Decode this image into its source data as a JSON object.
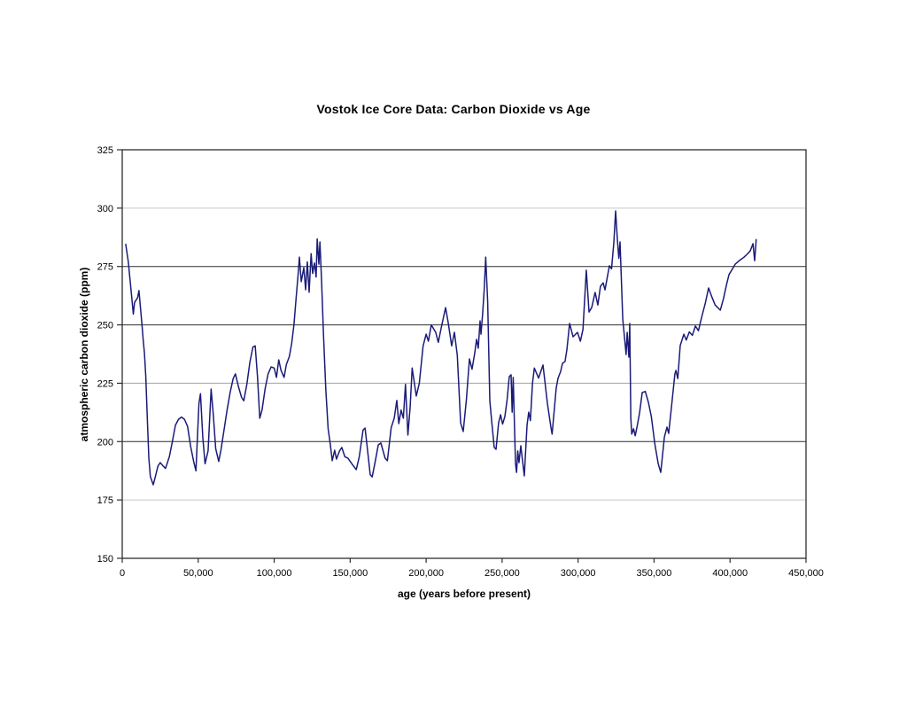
{
  "page": {
    "background_color": "#ffffff"
  },
  "chart_data": {
    "type": "line",
    "title": "Vostok Ice Core Data: Carbon Dioxide vs Age",
    "xlabel": "age (years before present)",
    "ylabel": "atmospheric carbon dioxide (ppm)",
    "xlim": [
      0,
      450000
    ],
    "ylim": [
      150,
      325
    ],
    "grid": "horizontal-only",
    "legend": "none",
    "line_color": "#1b1b78",
    "axis_color": "#2e2e2e",
    "xticks": [
      {
        "value": 0,
        "label": "0"
      },
      {
        "value": 50000,
        "label": "50,000"
      },
      {
        "value": 100000,
        "label": "100,000"
      },
      {
        "value": 150000,
        "label": "150,000"
      },
      {
        "value": 200000,
        "label": "200,000"
      },
      {
        "value": 250000,
        "label": "250,000"
      },
      {
        "value": 300000,
        "label": "300,000"
      },
      {
        "value": 350000,
        "label": "350,000"
      },
      {
        "value": 400000,
        "label": "400,000"
      },
      {
        "value": 450000,
        "label": "450,000"
      }
    ],
    "yticks": [
      {
        "value": 150,
        "label": "150",
        "grid": "frame"
      },
      {
        "value": 175,
        "label": "175",
        "grid": "#c6c6c6"
      },
      {
        "value": 200,
        "label": "200",
        "grid": "#2e2e2e"
      },
      {
        "value": 225,
        "label": "225",
        "grid": "#a2a2a2"
      },
      {
        "value": 250,
        "label": "250",
        "grid": "#2e2e2e"
      },
      {
        "value": 275,
        "label": "275",
        "grid": "#2e2e2e"
      },
      {
        "value": 300,
        "label": "300",
        "grid": "#c6c6c6"
      },
      {
        "value": 325,
        "label": "325",
        "grid": "frame"
      }
    ],
    "series": [
      {
        "name": "atmospheric CO2 (ppm)",
        "points": [
          [
            2300,
            284.5
          ],
          [
            4000,
            277
          ],
          [
            6200,
            262.2
          ],
          [
            7300,
            254.6
          ],
          [
            8100,
            259.6
          ],
          [
            10100,
            261.6
          ],
          [
            11000,
            264.7
          ],
          [
            13000,
            250
          ],
          [
            13800,
            243.5
          ],
          [
            14600,
            238
          ],
          [
            15500,
            228
          ],
          [
            16500,
            210
          ],
          [
            17500,
            193
          ],
          [
            18500,
            185
          ],
          [
            20400,
            181.5
          ],
          [
            22000,
            185.5
          ],
          [
            23500,
            189.5
          ],
          [
            25000,
            191
          ],
          [
            27000,
            189.5
          ],
          [
            28500,
            188.5
          ],
          [
            31000,
            193.5
          ],
          [
            33000,
            200
          ],
          [
            35000,
            207
          ],
          [
            37000,
            209.5
          ],
          [
            39000,
            210.5
          ],
          [
            41000,
            209.5
          ],
          [
            43000,
            206.5
          ],
          [
            45000,
            198
          ],
          [
            47000,
            191.5
          ],
          [
            48500,
            187.5
          ],
          [
            50500,
            216.5
          ],
          [
            51500,
            220.5
          ],
          [
            53000,
            202
          ],
          [
            54500,
            190.5
          ],
          [
            56500,
            196
          ],
          [
            58500,
            222.5
          ],
          [
            60000,
            211
          ],
          [
            61500,
            197
          ],
          [
            63500,
            191.5
          ],
          [
            65000,
            196.5
          ],
          [
            67000,
            205
          ],
          [
            69000,
            213.5
          ],
          [
            71000,
            221
          ],
          [
            73000,
            227
          ],
          [
            74500,
            229
          ],
          [
            76500,
            223.5
          ],
          [
            78500,
            219
          ],
          [
            80000,
            217.5
          ],
          [
            82000,
            224.5
          ],
          [
            84000,
            234
          ],
          [
            86000,
            240.5
          ],
          [
            87500,
            241
          ],
          [
            89000,
            228
          ],
          [
            90500,
            210
          ],
          [
            92000,
            213.5
          ],
          [
            94000,
            222.5
          ],
          [
            96000,
            229
          ],
          [
            98000,
            232
          ],
          [
            100000,
            231.5
          ],
          [
            101500,
            227.5
          ],
          [
            103000,
            235
          ],
          [
            104500,
            230.5
          ],
          [
            106500,
            227.5
          ],
          [
            108000,
            233
          ],
          [
            110000,
            236.5
          ],
          [
            111500,
            242
          ],
          [
            113000,
            250
          ],
          [
            114500,
            262
          ],
          [
            115800,
            272
          ],
          [
            116600,
            279
          ],
          [
            117800,
            268.5
          ],
          [
            119500,
            274.5
          ],
          [
            120700,
            265
          ],
          [
            121800,
            277
          ],
          [
            123000,
            264
          ],
          [
            124300,
            280.5
          ],
          [
            125300,
            272
          ],
          [
            126500,
            276.5
          ],
          [
            127600,
            270.5
          ],
          [
            128300,
            286.8
          ],
          [
            129400,
            276
          ],
          [
            130100,
            285.5
          ],
          [
            131200,
            268.5
          ],
          [
            132500,
            245
          ],
          [
            134000,
            222
          ],
          [
            135500,
            205.5
          ],
          [
            137000,
            198.5
          ],
          [
            138200,
            191.8
          ],
          [
            139800,
            196.3
          ],
          [
            141000,
            192.5
          ],
          [
            143000,
            196
          ],
          [
            144500,
            197.5
          ],
          [
            146500,
            193.5
          ],
          [
            148500,
            192.9
          ],
          [
            151000,
            190.6
          ],
          [
            154000,
            188
          ],
          [
            156000,
            193.5
          ],
          [
            158500,
            205
          ],
          [
            159800,
            205.8
          ],
          [
            161500,
            196
          ],
          [
            163200,
            185.8
          ],
          [
            164500,
            184.9
          ],
          [
            166500,
            191.5
          ],
          [
            168500,
            198.6
          ],
          [
            170200,
            199.4
          ],
          [
            173000,
            192.9
          ],
          [
            174500,
            191.8
          ],
          [
            177000,
            206
          ],
          [
            179000,
            210
          ],
          [
            180700,
            217.6
          ],
          [
            182000,
            207.7
          ],
          [
            183500,
            213.5
          ],
          [
            185000,
            210
          ],
          [
            186400,
            224.5
          ],
          [
            188000,
            202.8
          ],
          [
            189500,
            215
          ],
          [
            190800,
            231.5
          ],
          [
            193500,
            219.5
          ],
          [
            195500,
            225
          ],
          [
            198000,
            241
          ],
          [
            200000,
            246
          ],
          [
            201500,
            243
          ],
          [
            203400,
            250
          ],
          [
            206300,
            246.8
          ],
          [
            208000,
            242.5
          ],
          [
            210000,
            249
          ],
          [
            212800,
            257.4
          ],
          [
            214500,
            251
          ],
          [
            216800,
            241
          ],
          [
            218600,
            246.8
          ],
          [
            220500,
            237
          ],
          [
            222700,
            208
          ],
          [
            224400,
            204.3
          ],
          [
            226500,
            218
          ],
          [
            228500,
            235.4
          ],
          [
            230200,
            231
          ],
          [
            232000,
            238
          ],
          [
            233200,
            243.8
          ],
          [
            234300,
            240
          ],
          [
            235500,
            251.7
          ],
          [
            236100,
            246
          ],
          [
            237200,
            255
          ],
          [
            238200,
            265
          ],
          [
            239200,
            279
          ],
          [
            240500,
            260
          ],
          [
            241900,
            217.6
          ],
          [
            243100,
            209
          ],
          [
            244800,
            197.5
          ],
          [
            246000,
            196.7
          ],
          [
            247700,
            208.1
          ],
          [
            249000,
            211.5
          ],
          [
            250300,
            207.5
          ],
          [
            251800,
            210.7
          ],
          [
            253300,
            218
          ],
          [
            254700,
            227.8
          ],
          [
            255900,
            228.6
          ],
          [
            256600,
            212.6
          ],
          [
            257300,
            227.5
          ],
          [
            258800,
            190.6
          ],
          [
            259500,
            186.8
          ],
          [
            260300,
            196
          ],
          [
            261100,
            191
          ],
          [
            262300,
            198.2
          ],
          [
            263400,
            192
          ],
          [
            264600,
            185.3
          ],
          [
            266400,
            207
          ],
          [
            267500,
            212.6
          ],
          [
            268600,
            209
          ],
          [
            270000,
            225
          ],
          [
            271200,
            231.5
          ],
          [
            274000,
            227.2
          ],
          [
            276900,
            232.8
          ],
          [
            279800,
            216.4
          ],
          [
            282100,
            206.2
          ],
          [
            282900,
            203.2
          ],
          [
            285600,
            222.9
          ],
          [
            286800,
            227.1
          ],
          [
            288500,
            230
          ],
          [
            289700,
            233.5
          ],
          [
            291400,
            234.3
          ],
          [
            292600,
            239.2
          ],
          [
            294400,
            250.6
          ],
          [
            296700,
            244.9
          ],
          [
            299600,
            246.8
          ],
          [
            301500,
            243
          ],
          [
            303200,
            248
          ],
          [
            305400,
            273.4
          ],
          [
            307200,
            255.5
          ],
          [
            309000,
            257.5
          ],
          [
            311200,
            263.9
          ],
          [
            313000,
            258.5
          ],
          [
            314700,
            266.5
          ],
          [
            316500,
            268
          ],
          [
            317700,
            265
          ],
          [
            320600,
            275.3
          ],
          [
            322000,
            274
          ],
          [
            323500,
            285
          ],
          [
            324700,
            298.8
          ],
          [
            325800,
            287
          ],
          [
            326800,
            278.5
          ],
          [
            327600,
            285.5
          ],
          [
            329400,
            252.5
          ],
          [
            331600,
            237.3
          ],
          [
            332300,
            246.8
          ],
          [
            333400,
            236.2
          ],
          [
            334000,
            250.6
          ],
          [
            334700,
            210
          ],
          [
            335300,
            203.2
          ],
          [
            336500,
            205.5
          ],
          [
            337600,
            202.5
          ],
          [
            339000,
            207
          ],
          [
            340500,
            212.5
          ],
          [
            342200,
            221
          ],
          [
            344200,
            221.5
          ],
          [
            346200,
            217
          ],
          [
            348200,
            210.7
          ],
          [
            350500,
            199
          ],
          [
            352700,
            190.6
          ],
          [
            354400,
            186.8
          ],
          [
            356800,
            202
          ],
          [
            358500,
            206.2
          ],
          [
            359600,
            203.5
          ],
          [
            361400,
            214.5
          ],
          [
            363700,
            229
          ],
          [
            364400,
            230.5
          ],
          [
            365600,
            227
          ],
          [
            367200,
            241.1
          ],
          [
            369600,
            246
          ],
          [
            371200,
            243.5
          ],
          [
            373200,
            247
          ],
          [
            375200,
            245.5
          ],
          [
            377200,
            249.5
          ],
          [
            379200,
            247.5
          ],
          [
            381200,
            253
          ],
          [
            383600,
            259
          ],
          [
            385900,
            265.8
          ],
          [
            388000,
            262
          ],
          [
            390200,
            258.5
          ],
          [
            393600,
            256.3
          ],
          [
            395600,
            261
          ],
          [
            397600,
            267
          ],
          [
            399300,
            271.5
          ],
          [
            401600,
            274
          ],
          [
            403400,
            276
          ],
          [
            406000,
            277.5
          ],
          [
            409200,
            279
          ],
          [
            411600,
            280.5
          ],
          [
            413300,
            281.7
          ],
          [
            415100,
            284.8
          ],
          [
            416200,
            277.5
          ],
          [
            417200,
            286.5
          ]
        ]
      }
    ]
  }
}
